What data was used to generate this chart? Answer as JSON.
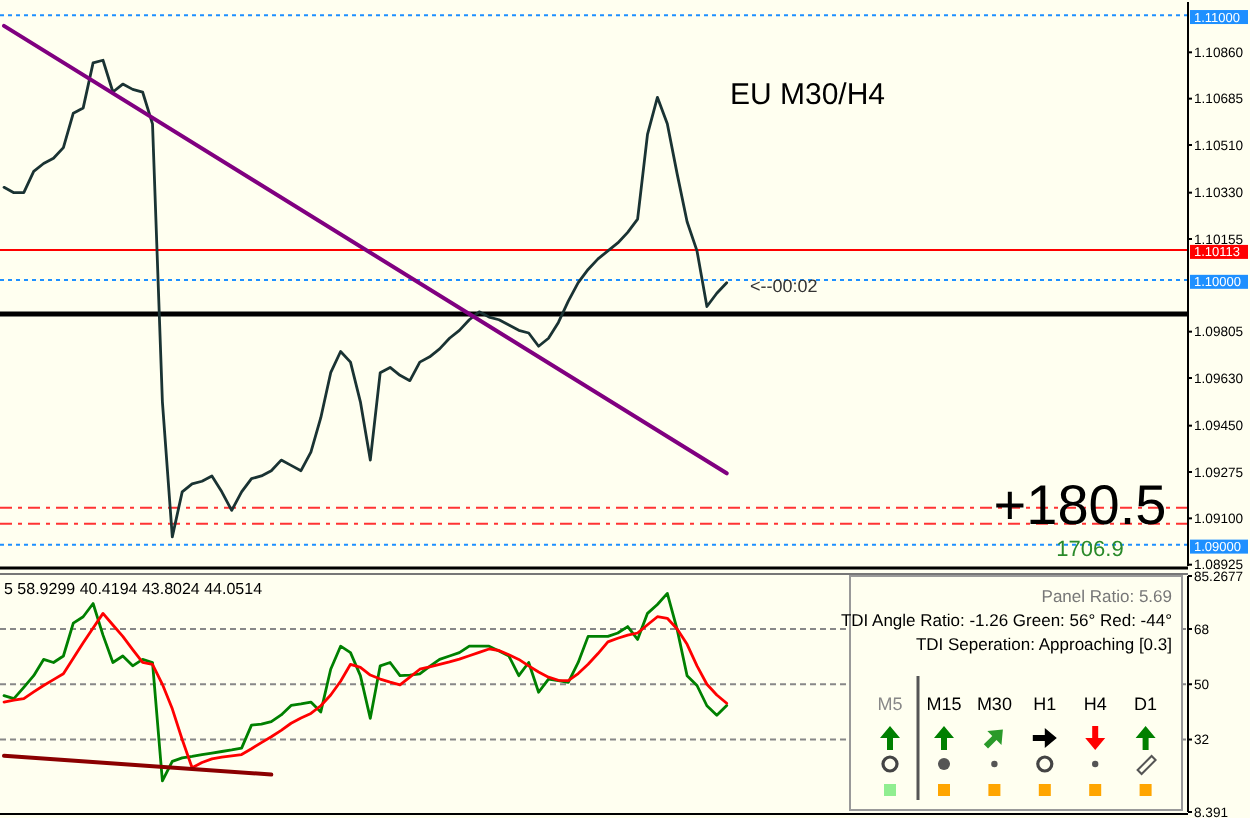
{
  "chart_data": [
    {
      "type": "line",
      "title": "EU M30/H4",
      "tick_labels": "y",
      "ylim": [
        1.0892,
        1.1105
      ],
      "categories": [
        null,
        null,
        null,
        null,
        null,
        null,
        null,
        null,
        null,
        null,
        null,
        null,
        null,
        null,
        null,
        null,
        null,
        null,
        null,
        null,
        null,
        null,
        null,
        null,
        null,
        null,
        null,
        null,
        null,
        null,
        null,
        null,
        null,
        null,
        null,
        null,
        null,
        null,
        null,
        null,
        null,
        null,
        null,
        null,
        null,
        null,
        null,
        null,
        null,
        null,
        null,
        null,
        null,
        null,
        null,
        null,
        null,
        null,
        null,
        null,
        null,
        null,
        null,
        null,
        null,
        null,
        null,
        null,
        null,
        null,
        null,
        null,
        null,
        null
      ],
      "yticks": [
        {
          "value": 1.1086,
          "label": "1.10860"
        },
        {
          "value": 1.10685,
          "label": "1.10685"
        },
        {
          "value": 1.1051,
          "label": "1.10510"
        },
        {
          "value": 1.1033,
          "label": "1.10330"
        },
        {
          "value": 1.10155,
          "label": "1.10155"
        },
        {
          "value": 1.09805,
          "label": "1.09805"
        },
        {
          "value": 1.0963,
          "label": "1.09630"
        },
        {
          "value": 1.0945,
          "label": "1.09450"
        },
        {
          "value": 1.09275,
          "label": "1.09275"
        },
        {
          "value": 1.091,
          "label": "1.09100"
        },
        {
          "value": 1.08925,
          "label": "1.08925"
        }
      ],
      "series": [
        {
          "color": "#1a3333",
          "values": [
            1.1035,
            1.1033,
            1.1033,
            1.1041,
            1.1044,
            1.1046,
            1.105,
            1.1063,
            1.1065,
            1.1082,
            1.1083,
            1.1071,
            1.1074,
            1.1072,
            1.1071,
            1.1059,
            1.0954,
            1.0903,
            1.092,
            1.0923,
            1.0924,
            1.0926,
            1.092,
            1.0913,
            1.092,
            1.0925,
            1.0926,
            1.0928,
            1.0932,
            1.093,
            1.0928,
            1.0935,
            1.0948,
            1.0965,
            1.0973,
            1.0969,
            1.0954,
            1.0932,
            1.0965,
            1.0967,
            1.0964,
            1.0962,
            1.0969,
            1.0971,
            1.0974,
            1.0978,
            1.0981,
            1.0985,
            1.0988,
            1.0986,
            1.0985,
            1.0983,
            1.0981,
            1.098,
            1.0975,
            1.0978,
            1.0984,
            1.0992,
            1.0999,
            1.1004,
            1.1008,
            1.1011,
            1.1014,
            1.1018,
            1.1023,
            1.1055,
            1.1069,
            1.1059,
            1.104,
            1.1022,
            1.1011,
            1.099,
            1.0995,
            1.0999
          ]
        },
        {
          "color": "#800080",
          "values": [
            1.1096,
            null,
            null,
            null,
            null,
            null,
            null,
            null,
            null,
            null,
            null,
            null,
            null,
            null,
            null,
            null,
            null,
            null,
            null,
            null,
            null,
            null,
            null,
            null,
            null,
            null,
            null,
            null,
            null,
            null,
            null,
            null,
            null,
            null,
            null,
            null,
            null,
            null,
            null,
            null,
            null,
            null,
            null,
            null,
            null,
            null,
            null,
            null,
            null,
            null,
            null,
            null,
            null,
            null,
            null,
            null,
            null,
            null,
            null,
            null,
            null,
            null,
            null,
            null,
            null,
            null,
            null,
            null,
            null,
            null,
            null,
            null,
            null,
            1.0927
          ]
        }
      ],
      "ref_lines": [
        {
          "axis": "y",
          "value": 1.11,
          "label": "1.11000",
          "color": "#1e90ff",
          "line_style": "dotted"
        },
        {
          "axis": "y",
          "value": 1.1,
          "label": "1.10000",
          "color": "#1e90ff",
          "line_style": "dotted"
        },
        {
          "axis": "y",
          "value": 1.09,
          "label": "1.09000",
          "color": "#1e90ff",
          "line_style": "dotted"
        },
        {
          "axis": "y",
          "value": 1.10113,
          "label": "1.10113",
          "color": "#ff0000",
          "line_style": "solid"
        },
        {
          "axis": "y",
          "value": 1.09872,
          "color": "#000000",
          "line_style": "solid"
        },
        {
          "axis": "y",
          "value": 1.0914,
          "color": "#ff3333",
          "line_style": "dashed"
        },
        {
          "axis": "y",
          "value": 1.0908,
          "color": "#ff3333",
          "line_style": "dashed"
        }
      ],
      "annotations": [
        "<--00:02",
        "+180.5",
        "1706.9"
      ]
    },
    {
      "type": "line",
      "tick_labels": "y",
      "grid": "y",
      "ylim": [
        8.391,
        85.2677
      ],
      "categories": [
        null,
        null,
        null,
        null,
        null,
        null,
        null,
        null,
        null,
        null,
        null,
        null,
        null,
        null,
        null,
        null,
        null,
        null,
        null,
        null,
        null,
        null,
        null,
        null,
        null,
        null,
        null,
        null,
        null,
        null,
        null,
        null,
        null,
        null,
        null,
        null,
        null,
        null,
        null,
        null,
        null,
        null,
        null,
        null,
        null,
        null,
        null,
        null,
        null,
        null,
        null,
        null,
        null,
        null,
        null,
        null,
        null,
        null,
        null,
        null,
        null,
        null,
        null,
        null,
        null,
        null,
        null,
        null,
        null,
        null,
        null,
        null,
        null,
        null
      ],
      "yticks": [
        8.391,
        32,
        50,
        68,
        85.2677
      ],
      "series": [
        {
          "color": "#008000",
          "values": [
            46.3,
            45.3,
            49,
            52.8,
            58.1,
            57.1,
            59.2,
            69.9,
            72,
            76.3,
            66,
            57.1,
            59.2,
            56,
            58.1,
            57.1,
            18.5,
            24.9,
            26,
            26.5,
            27.1,
            27.6,
            28.1,
            28.6,
            29.2,
            36.7,
            37,
            37.8,
            40,
            43.1,
            43.6,
            44.2,
            41,
            54.9,
            62.4,
            60.3,
            52.8,
            38.9,
            56,
            57.1,
            52.8,
            53,
            53.4,
            55.8,
            58.1,
            59.2,
            60.3,
            62.4,
            62.4,
            62.4,
            60.8,
            59.2,
            52.8,
            57.1,
            47.4,
            51.7,
            51.2,
            50.6,
            57.1,
            65.6,
            65.6,
            65.6,
            66.7,
            68.8,
            64.6,
            73.1,
            76,
            79.6,
            67.8,
            52.8,
            49.6,
            43,
            39.9,
            43.1
          ]
        },
        {
          "color": "#ff0000",
          "values": [
            44.2,
            44.8,
            45.3,
            47.5,
            49.6,
            51.5,
            53.4,
            58.5,
            63.5,
            68.3,
            73.1,
            69.3,
            65.6,
            61.3,
            57.1,
            56.5,
            50,
            42,
            32,
            22.8,
            24.5,
            25.7,
            26.3,
            26.7,
            27.1,
            29,
            31,
            32.9,
            35,
            37.3,
            39,
            40.5,
            43,
            46.5,
            51,
            56.5,
            55.5,
            53,
            51.7,
            50.7,
            49.8,
            52.3,
            54.9,
            55.7,
            56.5,
            57.3,
            58.2,
            59.3,
            60.4,
            61.5,
            61,
            59.6,
            58.1,
            56,
            54,
            52.3,
            51.3,
            51.2,
            53.5,
            56.5,
            60,
            63.8,
            65,
            66,
            66.7,
            69.4,
            72,
            71.5,
            68,
            63,
            56,
            50,
            46.5,
            43.8
          ]
        },
        {
          "color": "#8b0000",
          "values": [
            26.7,
            null,
            null,
            null,
            null,
            null,
            null,
            null,
            null,
            null,
            null,
            null,
            null,
            null,
            null,
            null,
            null,
            null,
            null,
            null,
            null,
            null,
            null,
            null,
            null,
            null,
            null,
            20.6,
            null,
            null,
            null,
            null,
            null,
            null,
            null,
            null,
            null,
            null,
            null,
            null,
            null,
            null,
            null,
            null,
            null,
            null,
            null,
            null,
            null,
            null,
            null,
            null,
            null,
            null,
            null,
            null,
            null,
            null,
            null,
            null,
            null,
            null,
            null,
            null,
            null,
            null,
            null,
            null,
            null,
            null,
            null,
            null,
            null,
            null
          ]
        }
      ],
      "annotations": [
        "5 58.9299 40.4194 43.8024 44.0514"
      ]
    },
    {
      "type": "other",
      "title": "Panel Ratio: 5.69",
      "annotations": [
        "TDI Angle Ratio: -1.26  Green: 56° Red: -44°",
        "TDI Seperation: Approaching [0.3]"
      ],
      "categories": [
        "M5",
        "M15",
        "M30",
        "H1",
        "H4",
        "D1"
      ]
    }
  ]
}
